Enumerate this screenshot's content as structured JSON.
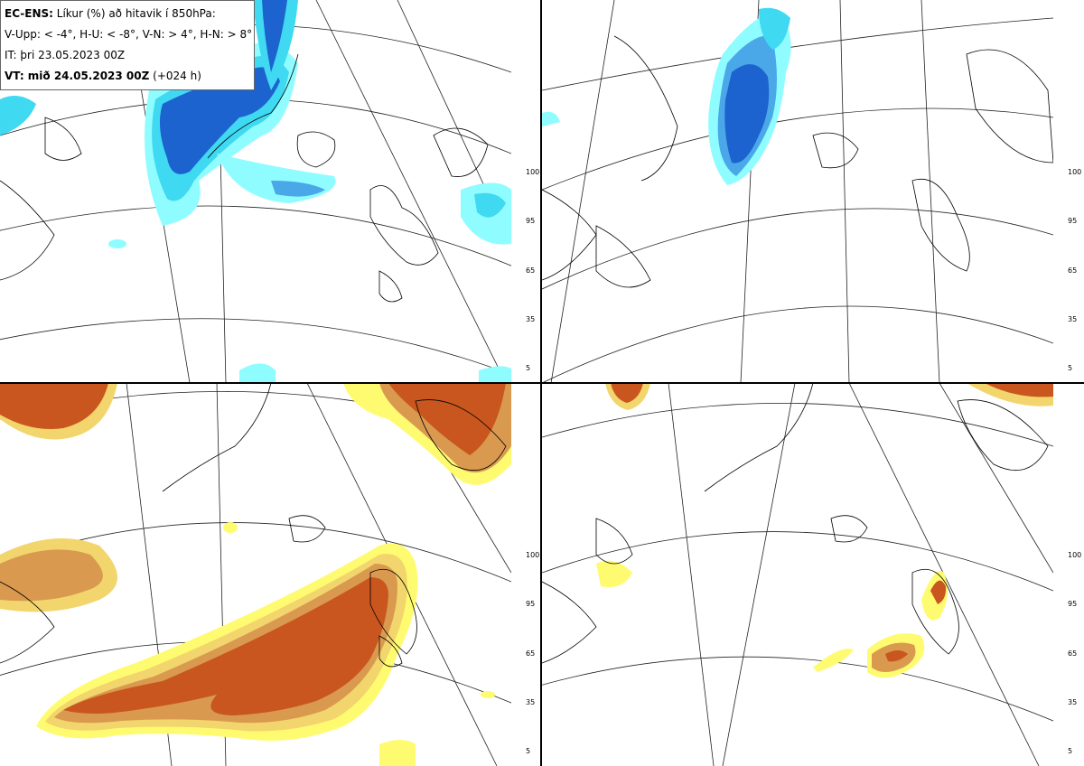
{
  "info": {
    "line1_bold": "EC-ENS:",
    "line1_rest": "Líkur (%) að hitavik í 850hPa:",
    "line2": "V-Upp: < -4°, H-U: < -8°, V-N: > 4°, H-N: > 8°",
    "line3": "IT: þri 23.05.2023 00Z",
    "line4_bold": "VT: mið 24.05.2023 00Z",
    "line4_rest": "(+024 h)"
  },
  "colorbar_ticks": [
    "100",
    "95",
    "65",
    "35",
    "5"
  ],
  "colors": {
    "cold": [
      "#8ffcff",
      "#3fd9f2",
      "#4aa8e8",
      "#1c63cf"
    ],
    "warm": [
      "#fffb70",
      "#f2d56c",
      "#d99a50",
      "#c9561e"
    ]
  }
}
